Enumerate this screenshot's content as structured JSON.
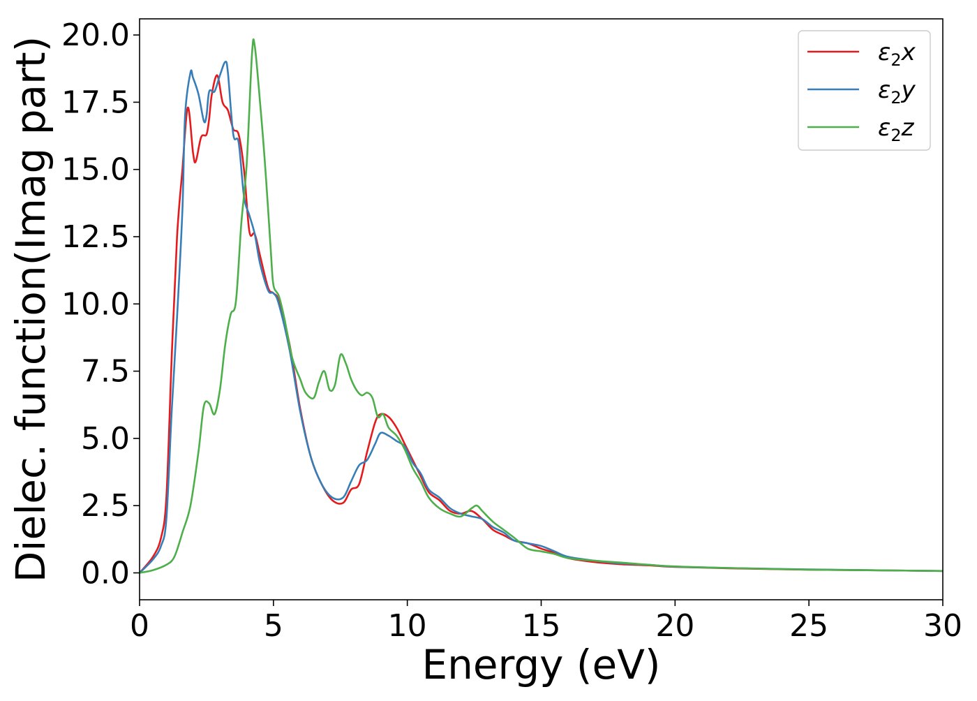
{
  "chart_data": {
    "type": "line",
    "title": "",
    "xlabel": "Energy (eV)",
    "ylabel": "Dielec. function(Imag part)",
    "xlim": [
      0,
      30
    ],
    "ylim": [
      -1.0,
      20.6
    ],
    "xticks": [
      "0",
      "5",
      "10",
      "15",
      "20",
      "25",
      "30"
    ],
    "yticks": [
      "0.0",
      "2.5",
      "5.0",
      "7.5",
      "10.0",
      "12.5",
      "15.0",
      "17.5",
      "20.0"
    ],
    "grid": false,
    "legend_position": "top-right",
    "series": [
      {
        "name": "ε₂x",
        "legend_base": "ε",
        "legend_sub": "2",
        "legend_tail": "x",
        "color": "#e41a1c",
        "x": [
          0,
          0.5,
          0.8,
          1.0,
          1.2,
          1.4,
          1.6,
          1.8,
          2.0,
          2.1,
          2.3,
          2.5,
          2.6,
          2.7,
          2.9,
          3.1,
          3.3,
          3.5,
          3.7,
          3.9,
          4.1,
          4.3,
          4.5,
          4.8,
          5.0,
          5.2,
          5.6,
          6.0,
          6.4,
          6.8,
          7.2,
          7.6,
          7.9,
          8.2,
          8.5,
          8.8,
          9.0,
          9.3,
          9.6,
          9.9,
          10.2,
          10.5,
          10.8,
          11.2,
          11.6,
          12.0,
          12.4,
          12.8,
          13.2,
          13.6,
          14.0,
          14.5,
          15.0,
          15.5,
          16.0,
          17.0,
          18.0,
          19.0,
          20.0,
          22.0,
          25.0,
          28.0,
          30.0
        ],
        "y": [
          0.0,
          0.6,
          1.3,
          2.8,
          8.0,
          12.5,
          15.0,
          17.3,
          15.6,
          15.3,
          16.2,
          16.3,
          16.9,
          17.8,
          18.5,
          17.5,
          17.2,
          16.5,
          16.3,
          15.0,
          12.7,
          12.6,
          11.8,
          10.6,
          10.4,
          10.1,
          8.5,
          6.1,
          4.3,
          3.3,
          2.7,
          2.6,
          3.1,
          3.3,
          4.5,
          5.6,
          5.9,
          5.8,
          5.4,
          4.8,
          4.2,
          3.6,
          3.0,
          2.7,
          2.3,
          2.2,
          2.3,
          2.0,
          1.6,
          1.4,
          1.2,
          1.1,
          0.9,
          0.75,
          0.55,
          0.4,
          0.32,
          0.28,
          0.22,
          0.17,
          0.12,
          0.09,
          0.07
        ]
      },
      {
        "name": "ε₂y",
        "legend_base": "ε",
        "legend_sub": "2",
        "legend_tail": "y",
        "color": "#377eb8",
        "x": [
          0,
          0.5,
          0.8,
          1.0,
          1.2,
          1.4,
          1.6,
          1.7,
          1.9,
          2.0,
          2.2,
          2.4,
          2.5,
          2.6,
          2.8,
          3.0,
          3.2,
          3.3,
          3.5,
          3.7,
          3.9,
          4.1,
          4.3,
          4.5,
          4.8,
          5.0,
          5.2,
          5.6,
          6.0,
          6.4,
          6.8,
          7.2,
          7.6,
          7.9,
          8.2,
          8.5,
          8.8,
          9.0,
          9.3,
          9.6,
          9.9,
          10.2,
          10.5,
          10.8,
          11.2,
          11.6,
          12.0,
          12.4,
          12.8,
          13.2,
          13.6,
          14.0,
          14.5,
          15.0,
          15.5,
          16.0,
          17.0,
          18.0,
          19.0,
          20.0,
          22.0,
          25.0,
          28.0,
          30.0
        ],
        "y": [
          0.0,
          0.5,
          1.0,
          2.0,
          6.0,
          9.5,
          13.5,
          17.0,
          18.6,
          18.4,
          17.8,
          16.8,
          17.0,
          17.9,
          17.9,
          18.5,
          19.0,
          18.6,
          16.3,
          16.0,
          14.0,
          13.3,
          12.6,
          11.5,
          10.5,
          10.4,
          10.0,
          8.3,
          6.0,
          4.3,
          3.3,
          2.8,
          2.8,
          3.4,
          4.0,
          4.2,
          4.8,
          5.2,
          5.1,
          4.9,
          4.7,
          4.1,
          3.7,
          3.1,
          2.8,
          2.4,
          2.2,
          2.1,
          2.0,
          1.7,
          1.5,
          1.2,
          1.1,
          1.0,
          0.8,
          0.6,
          0.45,
          0.35,
          0.3,
          0.23,
          0.18,
          0.13,
          0.09,
          0.07
        ]
      },
      {
        "name": "ε₂z",
        "legend_base": "ε",
        "legend_sub": "2",
        "legend_tail": "z",
        "color": "#4daf4a",
        "x": [
          0,
          0.5,
          1.0,
          1.3,
          1.6,
          1.9,
          2.2,
          2.4,
          2.6,
          2.8,
          3.0,
          3.2,
          3.4,
          3.6,
          3.8,
          4.0,
          4.2,
          4.3,
          4.5,
          4.7,
          4.9,
          5.0,
          5.2,
          5.4,
          5.7,
          6.0,
          6.2,
          6.5,
          6.7,
          6.9,
          7.1,
          7.3,
          7.5,
          7.7,
          7.9,
          8.1,
          8.3,
          8.5,
          8.7,
          8.9,
          9.1,
          9.3,
          9.6,
          9.9,
          10.2,
          10.5,
          10.8,
          11.2,
          11.6,
          12.0,
          12.4,
          12.6,
          12.8,
          13.2,
          13.6,
          14.0,
          14.5,
          15.0,
          15.5,
          16.0,
          17.0,
          18.0,
          19.0,
          20.0,
          22.0,
          25.0,
          28.0,
          30.0
        ],
        "y": [
          0.0,
          0.1,
          0.3,
          0.6,
          1.5,
          2.5,
          4.5,
          6.2,
          6.3,
          5.9,
          6.8,
          8.5,
          9.6,
          10.1,
          13.0,
          15.2,
          19.3,
          19.6,
          17.5,
          15.0,
          12.0,
          10.7,
          10.3,
          9.5,
          8.0,
          7.2,
          6.7,
          6.5,
          7.1,
          7.5,
          6.8,
          7.0,
          8.1,
          7.8,
          7.2,
          6.8,
          6.6,
          6.7,
          6.5,
          5.8,
          5.9,
          5.4,
          5.1,
          4.6,
          3.9,
          3.4,
          2.8,
          2.4,
          2.2,
          2.1,
          2.4,
          2.5,
          2.3,
          1.9,
          1.6,
          1.3,
          0.9,
          0.8,
          0.7,
          0.55,
          0.45,
          0.38,
          0.3,
          0.24,
          0.18,
          0.12,
          0.09,
          0.07
        ]
      }
    ]
  }
}
